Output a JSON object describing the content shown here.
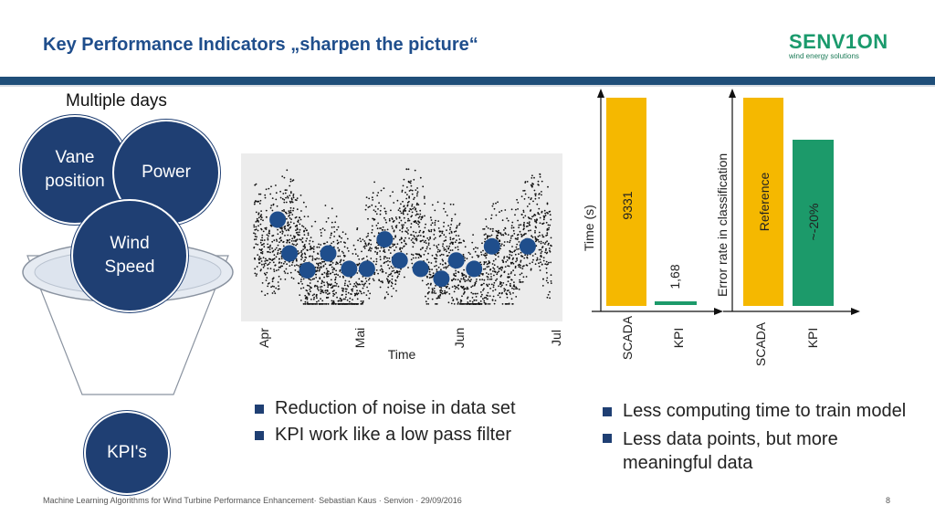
{
  "header": {
    "title": "Key Performance Indicators „sharpen the picture“",
    "logo_text": "SENV1ON",
    "logo_subtitle": "wind energy solutions"
  },
  "left_panel": {
    "caption": "Multiple days",
    "circle_vane": "Vane position",
    "circle_power": "Power",
    "circle_wind": "Wind Speed",
    "circle_kpi": "KPI's"
  },
  "bullets_left": [
    "Reduction of noise in data set",
    "KPI work like a low pass filter"
  ],
  "bullets_right": [
    "Less computing time to train model",
    "Less data points, but more meaningful data"
  ],
  "footer": {
    "text": "Machine Learning Algorithms for Wind Turbine Performance Enhancement· Sebastian Kaus · Senvion · 29/09/2016",
    "page": "8"
  },
  "colors": {
    "navy": "#1f3f73",
    "title_blue": "#1f4e8c",
    "bar_yellow": "#f5b800",
    "bar_green": "#1c9a6a",
    "kpi_point": "#1f4e8c"
  },
  "chart_data": [
    {
      "type": "scatter",
      "xlabel": "Time",
      "x_ticks": [
        "Apr",
        "Mai",
        "Jun",
        "Jul"
      ],
      "series": [
        {
          "values_x": [
            0.08,
            0.12,
            0.18,
            0.25,
            0.32,
            0.38,
            0.44,
            0.49,
            0.56,
            0.63,
            0.68,
            0.74,
            0.8,
            0.92
          ],
          "values_y": [
            0.62,
            0.38,
            0.26,
            0.38,
            0.27,
            0.27,
            0.48,
            0.33,
            0.27,
            0.2,
            0.33,
            0.27,
            0.43,
            0.43
          ]
        }
      ]
    },
    {
      "type": "bar",
      "ylabel": "Time (s)",
      "categories": [
        "SCADA",
        "KPI"
      ],
      "values": [
        9331,
        1.68
      ],
      "value_labels": [
        "9331",
        "1,68"
      ]
    },
    {
      "type": "bar",
      "ylabel": "Error rate in classification",
      "categories": [
        "SCADA",
        "KPI"
      ],
      "value_labels": [
        "Reference",
        "~-20%"
      ]
    }
  ]
}
